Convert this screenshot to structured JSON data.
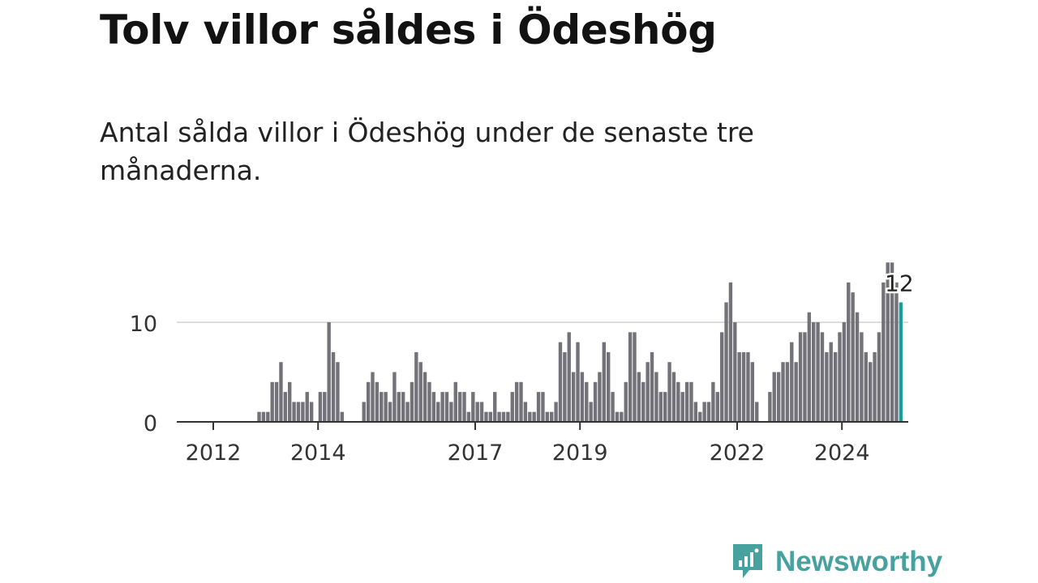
{
  "title": "Tolv villor såldes i Ödeshög",
  "subtitle": "Antal sålda villor i Ödeshög under de senaste tre månaderna.",
  "brand": {
    "name": "Newsworthy",
    "color": "#47a19f"
  },
  "colors": {
    "bar": "#737278",
    "highlight": "#1a9e9c",
    "grid": "#dcdcdc",
    "axis": "#333333",
    "text": "#333333"
  },
  "chart_data": {
    "type": "bar",
    "x_start": "2012-01",
    "x_ticks": [
      "2012",
      "2014",
      "2017",
      "2019",
      "2022",
      "2024"
    ],
    "y_ticks": [
      0,
      10
    ],
    "ylim": [
      0,
      16
    ],
    "grid": true,
    "last_value_label": "12",
    "values": [
      0,
      0,
      0,
      0,
      0,
      0,
      0,
      0,
      0,
      0,
      1,
      1,
      1,
      4,
      4,
      6,
      3,
      4,
      2,
      2,
      2,
      3,
      2,
      0,
      3,
      3,
      10,
      7,
      6,
      1,
      0,
      0,
      0,
      0,
      2,
      4,
      5,
      4,
      3,
      3,
      2,
      5,
      3,
      3,
      2,
      4,
      7,
      6,
      5,
      4,
      3,
      2,
      3,
      3,
      2,
      4,
      3,
      3,
      1,
      3,
      2,
      2,
      1,
      1,
      3,
      1,
      1,
      1,
      3,
      4,
      4,
      2,
      1,
      1,
      3,
      3,
      1,
      1,
      2,
      8,
      7,
      9,
      5,
      8,
      5,
      4,
      2,
      4,
      5,
      8,
      7,
      3,
      1,
      1,
      4,
      9,
      9,
      5,
      4,
      6,
      7,
      5,
      3,
      3,
      6,
      5,
      4,
      3,
      4,
      4,
      2,
      1,
      2,
      2,
      4,
      3,
      9,
      12,
      14,
      10,
      7,
      7,
      7,
      6,
      2,
      0,
      0,
      3,
      5,
      5,
      6,
      6,
      8,
      6,
      9,
      9,
      11,
      10,
      10,
      9,
      7,
      8,
      7,
      9,
      10,
      14,
      13,
      11,
      9,
      7,
      6,
      7,
      9,
      14,
      16,
      16,
      14,
      12
    ]
  }
}
